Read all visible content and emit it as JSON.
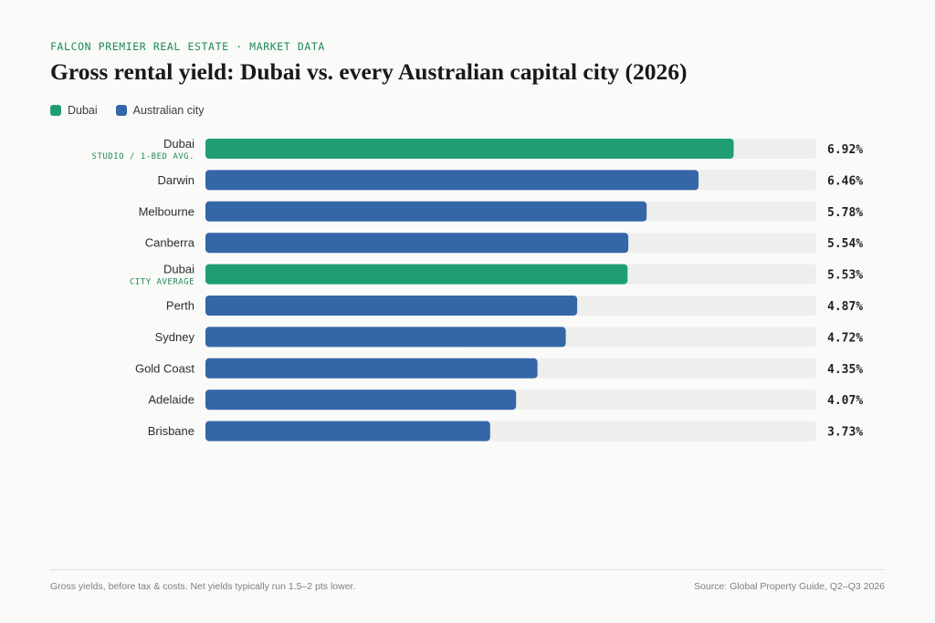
{
  "header": {
    "eyebrow": "FALCON PREMIER REAL ESTATE · MARKET DATA",
    "title": "Gross rental yield: Dubai vs. every Australian capital city (2026)"
  },
  "legend": [
    {
      "label": "Dubai",
      "color": "#1f9e72"
    },
    {
      "label": "Australian city",
      "color": "#3566a8"
    }
  ],
  "chart_data": {
    "type": "bar",
    "orientation": "horizontal",
    "title": "Gross rental yield: Dubai vs. every Australian capital city (2026)",
    "xlim": [
      0,
      8
    ],
    "unit": "%",
    "grid": false,
    "legend_position": "top-left",
    "colors": {
      "Dubai": "#1f9e72",
      "Australian city": "#3566a8",
      "track": "#eeefec"
    },
    "bars": [
      {
        "label": "Dubai",
        "sublabel": "STUDIO / 1-BED AVG.",
        "value": 6.92,
        "display": "6.92%",
        "group": "Dubai"
      },
      {
        "label": "Darwin",
        "sublabel": "",
        "value": 6.46,
        "display": "6.46%",
        "group": "Australian city"
      },
      {
        "label": "Melbourne",
        "sublabel": "",
        "value": 5.78,
        "display": "5.78%",
        "group": "Australian city"
      },
      {
        "label": "Canberra",
        "sublabel": "",
        "value": 5.54,
        "display": "5.54%",
        "group": "Australian city"
      },
      {
        "label": "Dubai",
        "sublabel": "CITY AVERAGE",
        "value": 5.53,
        "display": "5.53%",
        "group": "Dubai"
      },
      {
        "label": "Perth",
        "sublabel": "",
        "value": 4.87,
        "display": "4.87%",
        "group": "Australian city"
      },
      {
        "label": "Sydney",
        "sublabel": "",
        "value": 4.72,
        "display": "4.72%",
        "group": "Australian city"
      },
      {
        "label": "Gold Coast",
        "sublabel": "",
        "value": 4.35,
        "display": "4.35%",
        "group": "Australian city"
      },
      {
        "label": "Adelaide",
        "sublabel": "",
        "value": 4.07,
        "display": "4.07%",
        "group": "Australian city"
      },
      {
        "label": "Brisbane",
        "sublabel": "",
        "value": 3.73,
        "display": "3.73%",
        "group": "Australian city"
      }
    ]
  },
  "footer": {
    "note": "Gross yields, before tax & costs. Net yields typically run 1.5–2 pts lower.",
    "source": "Source: Global Property Guide, Q2–Q3 2026"
  }
}
